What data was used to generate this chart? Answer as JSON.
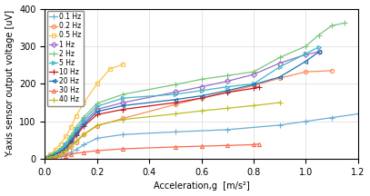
{
  "xlabel": "Acceleration,g  [m/s²]",
  "ylabel": "Y-axis sensor output voltage [uV]",
  "xlim": [
    0,
    1.2
  ],
  "ylim": [
    0,
    400
  ],
  "xticks": [
    0,
    0.2,
    0.4,
    0.6,
    0.8,
    1.0,
    1.2
  ],
  "yticks": [
    0,
    100,
    200,
    300,
    400
  ],
  "series": [
    {
      "label": "0.1 Hz",
      "color": "#6BAED6",
      "marker": "+",
      "x": [
        0,
        0.01,
        0.02,
        0.04,
        0.06,
        0.08,
        0.1,
        0.12,
        0.15,
        0.2,
        0.3,
        0.5,
        0.7,
        0.9,
        1.0,
        1.1,
        1.2
      ],
      "y": [
        0,
        1,
        3,
        5,
        8,
        12,
        18,
        25,
        38,
        55,
        65,
        72,
        78,
        90,
        100,
        110,
        120
      ]
    },
    {
      "label": "0.2 Hz",
      "color": "#FC8D59",
      "marker": "o",
      "x": [
        0,
        0.01,
        0.02,
        0.04,
        0.06,
        0.08,
        0.1,
        0.12,
        0.15,
        0.2,
        0.3,
        0.5,
        0.6,
        0.7,
        0.8,
        0.9,
        1.0,
        1.1
      ],
      "y": [
        0,
        2,
        5,
        9,
        14,
        20,
        32,
        45,
        65,
        88,
        108,
        145,
        162,
        178,
        195,
        215,
        232,
        235
      ]
    },
    {
      "label": "0.5 Hz",
      "color": "#FEC44F",
      "marker": "s",
      "x": [
        0,
        0.01,
        0.02,
        0.04,
        0.06,
        0.08,
        0.1,
        0.12,
        0.15,
        0.2,
        0.25,
        0.3
      ],
      "y": [
        0,
        5,
        12,
        25,
        40,
        60,
        85,
        115,
        150,
        200,
        240,
        252
      ]
    },
    {
      "label": "1 Hz",
      "color": "#9E6AC7",
      "marker": "D",
      "x": [
        0,
        0.01,
        0.02,
        0.04,
        0.06,
        0.08,
        0.1,
        0.12,
        0.15,
        0.2,
        0.3,
        0.5,
        0.6,
        0.7,
        0.8,
        0.9,
        1.0,
        1.05
      ],
      "y": [
        0,
        3,
        7,
        13,
        21,
        33,
        52,
        72,
        98,
        132,
        150,
        178,
        192,
        207,
        225,
        255,
        278,
        285
      ]
    },
    {
      "label": "2 Hz",
      "color": "#78C679",
      "marker": "+",
      "x": [
        0,
        0.01,
        0.02,
        0.04,
        0.06,
        0.08,
        0.1,
        0.12,
        0.15,
        0.2,
        0.3,
        0.5,
        0.6,
        0.7,
        0.8,
        0.9,
        1.0,
        1.05,
        1.1,
        1.15
      ],
      "y": [
        0,
        4,
        10,
        18,
        28,
        42,
        62,
        85,
        112,
        148,
        172,
        198,
        212,
        222,
        232,
        270,
        300,
        330,
        355,
        362
      ]
    },
    {
      "label": "5 Hz",
      "color": "#41B6C4",
      "marker": ">",
      "x": [
        0,
        0.01,
        0.02,
        0.04,
        0.06,
        0.08,
        0.1,
        0.12,
        0.15,
        0.2,
        0.3,
        0.5,
        0.6,
        0.7,
        0.8,
        0.9,
        1.0,
        1.05
      ],
      "y": [
        0,
        3,
        8,
        15,
        24,
        38,
        57,
        77,
        105,
        140,
        162,
        172,
        182,
        192,
        200,
        245,
        280,
        298
      ]
    },
    {
      "label": "10 Hz",
      "color": "#CB181D",
      "marker": "+",
      "x": [
        0,
        0.01,
        0.02,
        0.04,
        0.06,
        0.08,
        0.1,
        0.12,
        0.15,
        0.2,
        0.3,
        0.5,
        0.6,
        0.7,
        0.8,
        0.82
      ],
      "y": [
        0,
        3,
        6,
        11,
        17,
        27,
        43,
        62,
        88,
        118,
        132,
        150,
        162,
        177,
        188,
        192
      ]
    },
    {
      "label": "20 Hz",
      "color": "#2171B5",
      "marker": "<",
      "x": [
        0,
        0.01,
        0.02,
        0.04,
        0.06,
        0.08,
        0.1,
        0.12,
        0.15,
        0.2,
        0.3,
        0.5,
        0.6,
        0.7,
        0.8,
        0.9,
        1.0,
        1.05
      ],
      "y": [
        0,
        3,
        6,
        12,
        19,
        30,
        48,
        68,
        92,
        126,
        142,
        158,
        168,
        182,
        198,
        218,
        260,
        285
      ]
    },
    {
      "label": "30 Hz",
      "color": "#FB6A4A",
      "marker": "^",
      "x": [
        0,
        0.02,
        0.04,
        0.08,
        0.1,
        0.15,
        0.2,
        0.3,
        0.5,
        0.6,
        0.7,
        0.8,
        0.82
      ],
      "y": [
        0,
        1,
        3,
        8,
        13,
        18,
        22,
        27,
        32,
        34,
        36,
        38,
        40
      ]
    },
    {
      "label": "40 Hz",
      "color": "#BCBD22",
      "marker": "+",
      "x": [
        0,
        0.01,
        0.02,
        0.04,
        0.06,
        0.08,
        0.1,
        0.12,
        0.15,
        0.2,
        0.3,
        0.5,
        0.6,
        0.7,
        0.8,
        0.9
      ],
      "y": [
        0,
        2,
        4,
        8,
        14,
        22,
        34,
        48,
        66,
        90,
        105,
        120,
        128,
        135,
        142,
        150
      ]
    }
  ]
}
